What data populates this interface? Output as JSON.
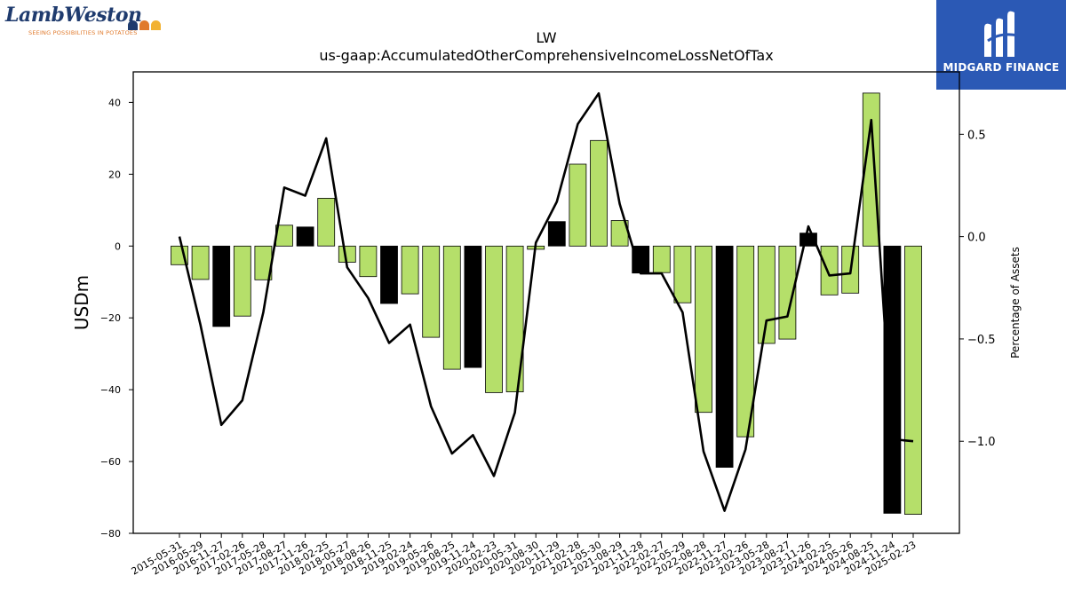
{
  "logos": {
    "left": {
      "wordmark": "LambWeston",
      "tagline": "SEEING POSSIBILITIES IN POTATOES",
      "dot_colors": [
        "#1f3b6e",
        "#e07a2c",
        "#f2b233"
      ]
    },
    "right": {
      "text": "MIDGARD FINANCE",
      "background": "#2b59b5"
    }
  },
  "chart_data": {
    "type": "bar",
    "title": "LW",
    "subtitle": "us-gaap:AccumulatedOtherComprehensiveIncomeLossNetOfTax",
    "ylabel": "USDm",
    "ylabel_right": "Percentage of Assets",
    "ylim": [
      -80,
      48.5
    ],
    "ylim_right": [
      -1.45,
      0.805
    ],
    "yticks": [
      40,
      20,
      0,
      -20,
      -40,
      -60,
      -80
    ],
    "yticks_right": [
      0.5,
      0.0,
      -0.5,
      -1.0
    ],
    "categories": [
      "2015-05-31",
      "2016-05-29",
      "2016-11-27",
      "2017-02-26",
      "2017-05-28",
      "2017-08-27",
      "2017-11-26",
      "2018-02-25",
      "2018-05-27",
      "2018-08-26",
      "2018-11-25",
      "2019-02-24",
      "2019-05-26",
      "2019-08-25",
      "2019-11-24",
      "2020-02-23",
      "2020-05-31",
      "2020-08-30",
      "2020-11-29",
      "2021-02-28",
      "2021-05-30",
      "2021-08-29",
      "2021-11-28",
      "2022-02-27",
      "2022-05-29",
      "2022-08-28",
      "2022-11-27",
      "2023-02-26",
      "2023-05-28",
      "2023-08-27",
      "2023-11-26",
      "2024-02-25",
      "2024-05-26",
      "2024-08-25",
      "2024-11-24",
      "2025-02-23"
    ],
    "series": [
      {
        "type": "bar",
        "values": [
          -5.2,
          -9.3,
          -22.4,
          -19.5,
          -9.4,
          5.8,
          5.3,
          13.3,
          -4.5,
          -8.5,
          -16.0,
          -13.3,
          -25.4,
          -34.3,
          -33.8,
          -40.8,
          -40.6,
          -0.9,
          6.8,
          22.8,
          29.4,
          7.1,
          -7.5,
          -7.4,
          -15.8,
          -46.3,
          -61.6,
          -53.1,
          -27.1,
          -25.9,
          3.6,
          -13.6,
          -13.1,
          42.6,
          -74.4,
          -74.7
        ],
        "bar_colors": [
          "#b5df6a",
          "#b5df6a",
          "#000000",
          "#b5df6a",
          "#b5df6a",
          "#b5df6a",
          "#000000",
          "#b5df6a",
          "#b5df6a",
          "#b5df6a",
          "#000000",
          "#b5df6a",
          "#b5df6a",
          "#b5df6a",
          "#000000",
          "#b5df6a",
          "#b5df6a",
          "#b5df6a",
          "#000000",
          "#b5df6a",
          "#b5df6a",
          "#b5df6a",
          "#000000",
          "#b5df6a",
          "#b5df6a",
          "#b5df6a",
          "#000000",
          "#b5df6a",
          "#b5df6a",
          "#b5df6a",
          "#000000",
          "#b5df6a",
          "#b5df6a",
          "#b5df6a",
          "#000000",
          "#b5df6a"
        ]
      },
      {
        "type": "line",
        "axis": "right",
        "color": "#000000",
        "values": [
          0.0,
          -0.43,
          -0.92,
          -0.8,
          -0.37,
          0.24,
          0.2,
          0.48,
          -0.15,
          -0.3,
          -0.52,
          -0.43,
          -0.83,
          -1.06,
          -0.97,
          -1.17,
          -0.86,
          -0.03,
          0.17,
          0.55,
          0.7,
          0.16,
          -0.18,
          -0.18,
          -0.37,
          -1.05,
          -1.34,
          -1.04,
          -0.41,
          -0.39,
          0.05,
          -0.19,
          -0.18,
          0.57,
          -0.99,
          -1.0
        ]
      }
    ],
    "grid": false,
    "legend": "none"
  }
}
